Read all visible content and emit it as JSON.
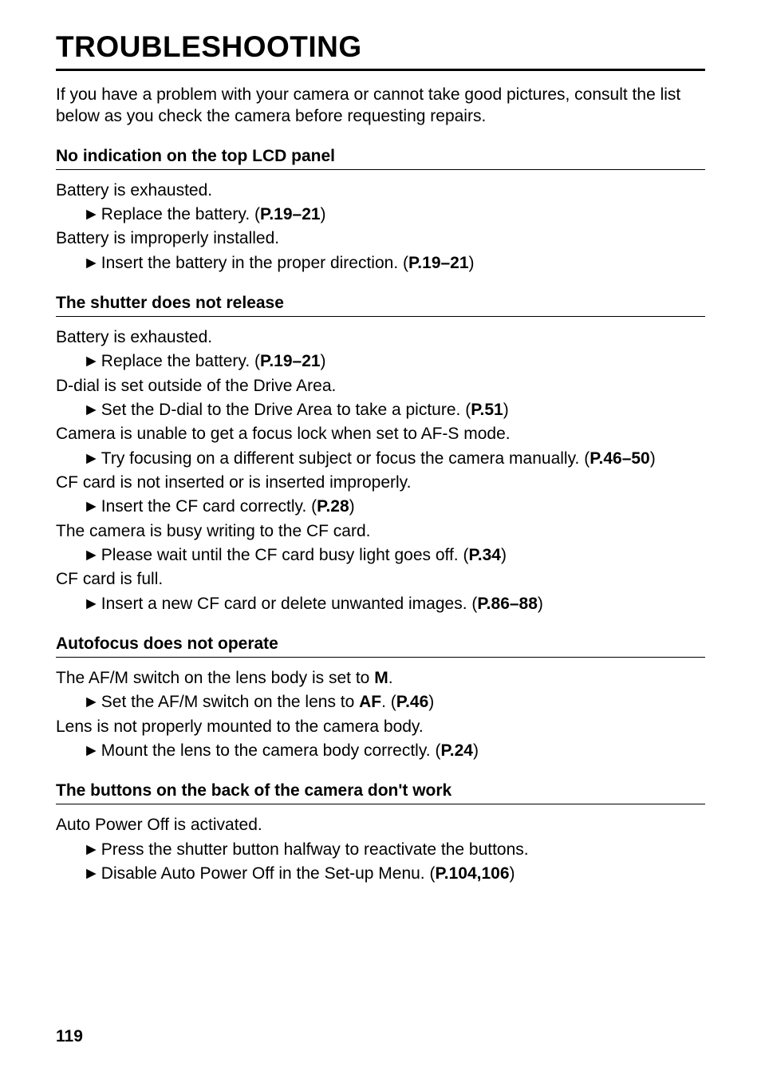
{
  "page": {
    "title": "TROUBLESHOOTING",
    "intro": "If you have a problem with your camera or cannot take good pictures, consult the list below as you check the camera before requesting repairs.",
    "page_number": "119"
  },
  "glyphs": {
    "arrow": "►"
  },
  "sections": {
    "s1": {
      "heading": "No indication on the top LCD panel",
      "c1": "Battery is exhausted.",
      "a1_pre": "Replace the battery. (",
      "a1_ref": "P.19–21",
      "a1_post": ")",
      "c2": "Battery is improperly installed.",
      "a2_pre": "Insert the battery in the proper direction. (",
      "a2_ref": "P.19–21",
      "a2_post": ")"
    },
    "s2": {
      "heading": "The shutter does not release",
      "c1": "Battery is exhausted.",
      "a1_pre": "Replace the battery. (",
      "a1_ref": "P.19–21",
      "a1_post": ")",
      "c2": "D-dial is set outside of the Drive Area.",
      "a2_pre": "Set the D-dial to the Drive Area to take a picture. (",
      "a2_ref": "P.51",
      "a2_post": ")",
      "c3": "Camera is unable to get a focus lock when set to AF-S mode.",
      "a3_pre": "Try focusing on a different subject or focus the camera manually. (",
      "a3_ref": "P.46–50",
      "a3_post": ")",
      "c4": "CF card is not inserted or is inserted improperly.",
      "a4_pre": "Insert the CF card correctly. (",
      "a4_ref": "P.28",
      "a4_post": ")",
      "c5": "The camera is busy writing to the CF card.",
      "a5_pre": "Please wait until the CF card busy light goes off. (",
      "a5_ref": "P.34",
      "a5_post": ")",
      "c6": "CF card is full.",
      "a6_pre": "Insert a new CF card or delete unwanted images. (",
      "a6_ref": "P.86–88",
      "a6_post": ")"
    },
    "s3": {
      "heading": "Autofocus does not operate",
      "c1_pre": "The AF/M switch on the lens body is set to ",
      "c1_bold": "M",
      "c1_post": ".",
      "a1_pre": "Set the AF/M switch on the lens to ",
      "a1_bold": "AF",
      "a1_mid": ". (",
      "a1_ref": "P.46",
      "a1_post": ")",
      "c2": "Lens is not properly mounted to the camera body.",
      "a2_pre": "Mount the lens to the camera body correctly. (",
      "a2_ref": "P.24",
      "a2_post": ")"
    },
    "s4": {
      "heading": "The buttons on the back of the camera don't work",
      "c1": "Auto Power Off is activated.",
      "a1": "Press the shutter button halfway to reactivate the buttons.",
      "a2_pre": "Disable Auto Power Off in the Set-up Menu. (",
      "a2_ref": "P.104,106",
      "a2_post": ")"
    }
  }
}
